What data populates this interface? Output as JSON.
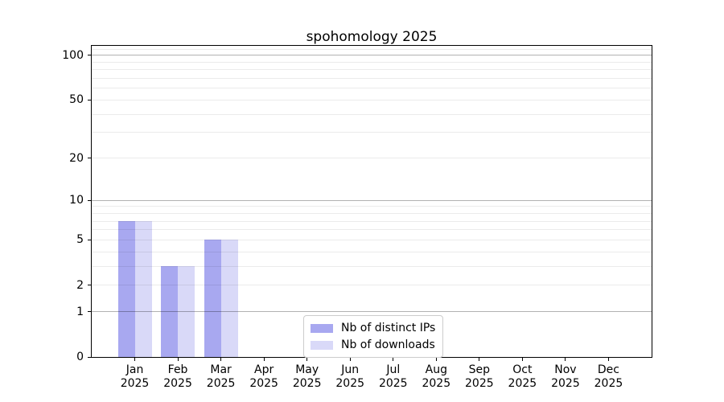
{
  "chart_data": {
    "type": "bar",
    "title": "spohomology 2025",
    "categories": [
      {
        "month": "Jan",
        "year": "2025"
      },
      {
        "month": "Feb",
        "year": "2025"
      },
      {
        "month": "Mar",
        "year": "2025"
      },
      {
        "month": "Apr",
        "year": "2025"
      },
      {
        "month": "May",
        "year": "2025"
      },
      {
        "month": "Jun",
        "year": "2025"
      },
      {
        "month": "Jul",
        "year": "2025"
      },
      {
        "month": "Aug",
        "year": "2025"
      },
      {
        "month": "Sep",
        "year": "2025"
      },
      {
        "month": "Oct",
        "year": "2025"
      },
      {
        "month": "Nov",
        "year": "2025"
      },
      {
        "month": "Dec",
        "year": "2025"
      }
    ],
    "series": [
      {
        "name": "Nb of distinct IPs",
        "color": "#a8a8f0",
        "values": [
          7,
          3,
          5,
          0,
          0,
          0,
          0,
          0,
          0,
          0,
          0,
          0
        ]
      },
      {
        "name": "Nb of downloads",
        "color": "#d9d9f8",
        "values": [
          7,
          3,
          5,
          0,
          0,
          0,
          0,
          0,
          0,
          0,
          0,
          0
        ]
      }
    ],
    "xlabel": "",
    "ylabel": "",
    "yscale": "log1p",
    "ylim": [
      0,
      116
    ],
    "yticks": [
      0,
      1,
      2,
      5,
      10,
      20,
      50,
      100
    ],
    "grid": {
      "major_values": [
        1,
        10,
        100
      ],
      "minor_values": [
        2,
        3,
        4,
        5,
        6,
        7,
        8,
        9,
        20,
        30,
        40,
        50,
        60,
        70,
        80,
        90,
        110
      ],
      "major_color": "rgba(0,0,0,0.30)",
      "minor_color": "rgba(0,0,0,0.08)"
    },
    "legend_position": "lower center",
    "spine_color": "#000000"
  }
}
